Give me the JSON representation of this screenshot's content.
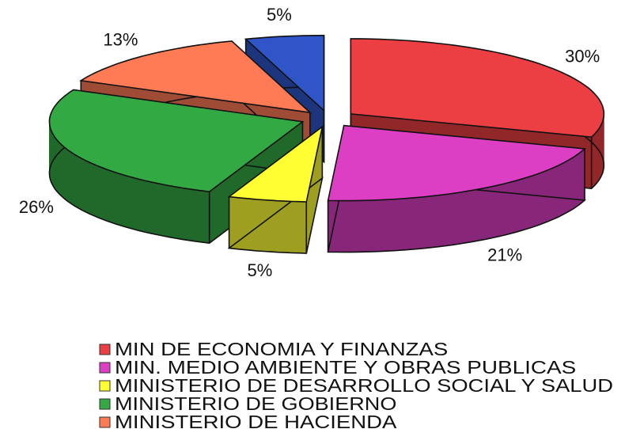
{
  "chart_data": {
    "type": "pie",
    "categories": [
      "MIN DE ECONOMIA Y FINANZAS",
      "MIN. MEDIO AMBIENTE Y OBRAS PUBLICAS",
      "MINISTERIO DE DESARROLLO SOCIAL Y SALUD",
      "MINISTERIO DE GOBIERNO",
      "MINISTERIO DE HACIENDA",
      null
    ],
    "values": [
      30,
      21,
      5,
      26,
      13,
      5
    ],
    "value_labels": [
      "30%",
      "21%",
      "5%",
      "26%",
      "13%",
      "5%"
    ],
    "colors": [
      "#ec3f43",
      "#dc3fc4",
      "#ffff33",
      "#33a944",
      "#ff7b55",
      "#2f55c8"
    ],
    "legend": "bottom"
  }
}
